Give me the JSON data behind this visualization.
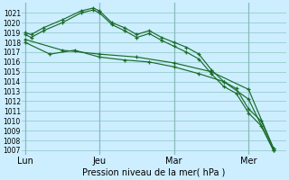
{
  "xlabel": "Pression niveau de la mer( hPa )",
  "bg_color": "#cceeff",
  "grid_color": "#99cccc",
  "line_color": "#1a6b2a",
  "ylim": [
    1006.5,
    1022.0
  ],
  "yticks": [
    1007,
    1008,
    1009,
    1010,
    1011,
    1012,
    1013,
    1014,
    1015,
    1016,
    1017,
    1018,
    1019,
    1020,
    1021
  ],
  "xtick_labels": [
    "Lun",
    "Jeu",
    "Mar",
    "Mer"
  ],
  "xtick_positions": [
    0,
    12,
    24,
    36
  ],
  "xlim": [
    -0.5,
    42
  ],
  "lines": [
    {
      "x": [
        0,
        1,
        3,
        6,
        9,
        11,
        12,
        14,
        16,
        18,
        20,
        22,
        24,
        26,
        28,
        30,
        32,
        34,
        36,
        38,
        40
      ],
      "y": [
        1019.0,
        1018.8,
        1019.5,
        1020.3,
        1021.2,
        1021.5,
        1021.2,
        1020.0,
        1019.5,
        1018.8,
        1019.2,
        1018.5,
        1018.0,
        1017.5,
        1016.8,
        1015.2,
        1014.0,
        1013.3,
        1011.2,
        1010.0,
        1007.2
      ]
    },
    {
      "x": [
        0,
        1,
        3,
        6,
        9,
        11,
        12,
        14,
        16,
        18,
        20,
        22,
        24,
        26,
        28,
        30,
        32,
        34,
        36,
        38,
        40
      ],
      "y": [
        1018.8,
        1018.5,
        1019.2,
        1020.0,
        1021.0,
        1021.3,
        1021.0,
        1019.8,
        1019.2,
        1018.5,
        1018.9,
        1018.2,
        1017.6,
        1017.0,
        1016.3,
        1014.8,
        1013.5,
        1012.8,
        1010.8,
        1009.5,
        1007.0
      ]
    },
    {
      "x": [
        0,
        6,
        12,
        18,
        24,
        30,
        36,
        40
      ],
      "y": [
        1018.3,
        1017.2,
        1016.8,
        1016.5,
        1015.9,
        1015.0,
        1013.2,
        1007.2
      ]
    },
    {
      "x": [
        0,
        4,
        8,
        12,
        16,
        20,
        24,
        28,
        32,
        36,
        40
      ],
      "y": [
        1018.0,
        1016.8,
        1017.2,
        1016.5,
        1016.2,
        1016.0,
        1015.5,
        1014.8,
        1014.0,
        1012.2,
        1007.0
      ]
    }
  ]
}
